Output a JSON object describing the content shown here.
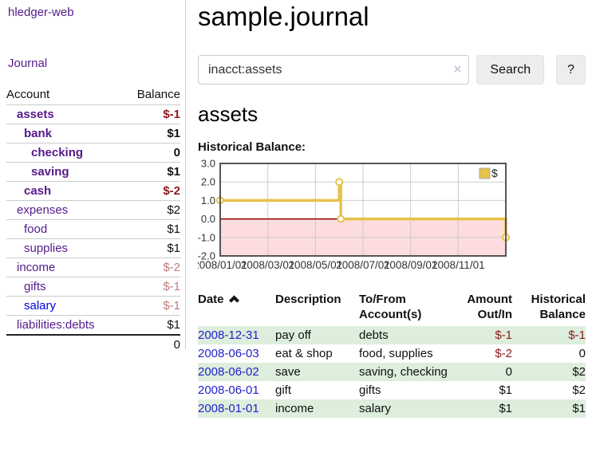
{
  "app": {
    "brand": "hledger-web",
    "nav_journal": "Journal"
  },
  "sidebar": {
    "header": {
      "account": "Account",
      "balance": "Balance"
    },
    "rows": [
      {
        "name": "assets",
        "level": 1,
        "bold": true,
        "balance": "$-1",
        "negative": "dark"
      },
      {
        "name": "bank",
        "level": 2,
        "bold": true,
        "balance": "$1"
      },
      {
        "name": "checking",
        "level": 3,
        "bold": true,
        "balance": "0"
      },
      {
        "name": "saving",
        "level": 3,
        "bold": true,
        "balance": "$1"
      },
      {
        "name": "cash",
        "level": 2,
        "bold": true,
        "balance": "$-2",
        "negative": "dark"
      },
      {
        "name": "expenses",
        "level": 1,
        "bold": false,
        "balance": "$2"
      },
      {
        "name": "food",
        "level": 2,
        "bold": false,
        "balance": "$1"
      },
      {
        "name": "supplies",
        "level": 2,
        "bold": false,
        "balance": "$1"
      },
      {
        "name": "income",
        "level": 1,
        "bold": false,
        "balance": "$-2",
        "negative": "light"
      },
      {
        "name": "gifts",
        "level": 2,
        "bold": false,
        "balance": "$-1",
        "negative": "light"
      },
      {
        "name": "salary",
        "level": 2,
        "bold": false,
        "balance": "$-1",
        "negative": "light",
        "link_color": "blue"
      },
      {
        "name": "liabilities:debts",
        "level": 1,
        "bold": false,
        "balance": "$1"
      }
    ],
    "total": "0"
  },
  "header": {
    "title": "sample.journal"
  },
  "search": {
    "value": "inacct:assets",
    "placeholder": "",
    "clear_icon": "×",
    "button_label": "Search",
    "help_label": "?"
  },
  "account_page": {
    "heading": "assets",
    "chart_label": "Historical Balance:"
  },
  "chart_data": {
    "type": "line",
    "step": true,
    "title": "Historical Balance",
    "series": [
      {
        "name": "$",
        "points": [
          {
            "date": "2008-01-01",
            "value": 1
          },
          {
            "date": "2008-06-01",
            "value": 2
          },
          {
            "date": "2008-06-03",
            "value": 0
          },
          {
            "date": "2008-12-31",
            "value": -1
          }
        ]
      }
    ],
    "x_ticks": [
      {
        "label": "2008/01/01",
        "month": 0
      },
      {
        "label": "2008/03/01",
        "month": 2
      },
      {
        "label": "2008/05/01",
        "month": 4
      },
      {
        "label": "2008/07/01",
        "month": 6
      },
      {
        "label": "2008/09/01",
        "month": 8
      },
      {
        "label": "2008/11/01",
        "month": 10
      }
    ],
    "y_ticks": [
      "3.0",
      "2.0",
      "1.0",
      "0.0",
      "-1.0",
      "-2.0"
    ],
    "ylim": [
      -2,
      3
    ],
    "x_range_months": 12,
    "legend": {
      "label": "$",
      "position": "top-right"
    },
    "colors": {
      "line": "#e6c24a",
      "marker_fill": "#ffffff",
      "below_zero_fill": "#fcdcdc",
      "zero_line": "#8b0000",
      "grid": "#cccccc",
      "border": "#555555",
      "tick_text": "#333333"
    }
  },
  "journal_table": {
    "headers": {
      "date": "Date",
      "description": "Description",
      "accounts": "To/From Account(s)",
      "amount": "Amount Out/In",
      "historical": "Historical Balance"
    },
    "rows": [
      {
        "date": "2008-12-31",
        "description": "pay off",
        "accounts": "debts",
        "amount": "$-1",
        "amount_negative": true,
        "balance": "$-1",
        "balance_negative": true
      },
      {
        "date": "2008-06-03",
        "description": "eat & shop",
        "accounts": "food, supplies",
        "amount": "$-2",
        "amount_negative": true,
        "balance": "0",
        "balance_negative": false
      },
      {
        "date": "2008-06-02",
        "description": "save",
        "accounts": "saving, checking",
        "amount": "0",
        "amount_negative": false,
        "balance": "$2",
        "balance_negative": false
      },
      {
        "date": "2008-06-01",
        "description": "gift",
        "accounts": "gifts",
        "amount": "$1",
        "amount_negative": false,
        "balance": "$2",
        "balance_negative": false
      },
      {
        "date": "2008-01-01",
        "description": "income",
        "accounts": "salary",
        "amount": "$1",
        "amount_negative": false,
        "balance": "$1",
        "balance_negative": false
      }
    ]
  }
}
